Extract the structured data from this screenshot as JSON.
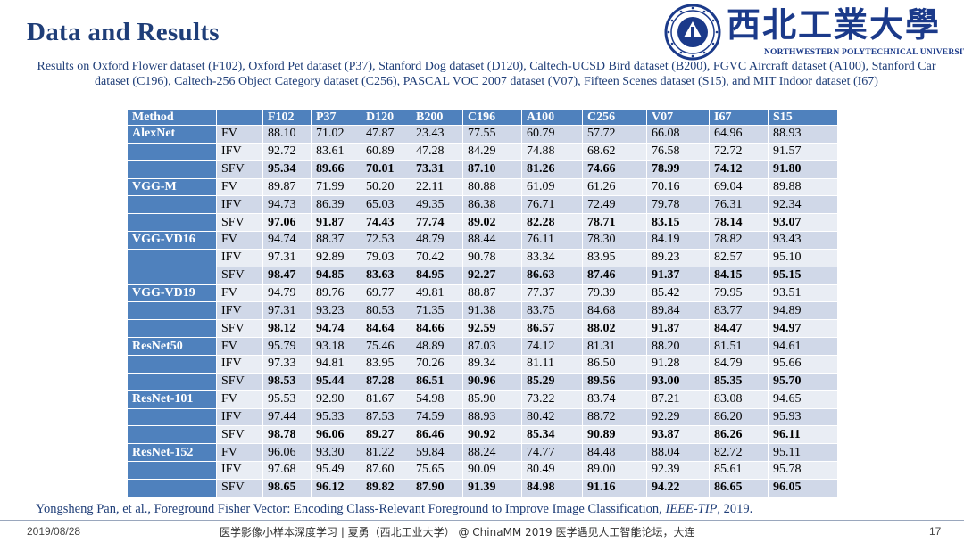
{
  "slide": {
    "title": "Data and Results"
  },
  "logo": {
    "cn_text": "西北工業大學",
    "en_text": "NORTHWESTERN POLYTECHNICAL UNIVERSITY",
    "colors": {
      "brand": "#1b3a8a"
    }
  },
  "subtitle": "Results on Oxford Flower dataset (F102), Oxford Pet dataset (P37), Stanford Dog dataset (D120), Caltech-UCSD Bird dataset (B200), FGVC Aircraft dataset (A100), Stanford Car dataset (C196), Caltech-256 Object Category dataset (C256), PASCAL VOC 2007 dataset (V07), Fifteen Scenes dataset (S15), and MIT Indoor dataset (I67)",
  "table": {
    "headers": [
      "Method",
      "",
      "F102",
      "P37",
      "D120",
      "B200",
      "C196",
      "A100",
      "C256",
      "V07",
      "I67",
      "S15"
    ],
    "groups": [
      {
        "method": "AlexNet",
        "rows": [
          {
            "type": "FV",
            "values": [
              "88.10",
              "71.02",
              "47.87",
              "23.43",
              "77.55",
              "60.79",
              "57.72",
              "66.08",
              "64.96",
              "88.93"
            ]
          },
          {
            "type": "IFV",
            "values": [
              "92.72",
              "83.61",
              "60.89",
              "47.28",
              "84.29",
              "74.88",
              "68.62",
              "76.58",
              "72.72",
              "91.57"
            ]
          },
          {
            "type": "SFV",
            "values": [
              "95.34",
              "89.66",
              "70.01",
              "73.31",
              "87.10",
              "81.26",
              "74.66",
              "78.99",
              "74.12",
              "91.80"
            ]
          }
        ]
      },
      {
        "method": "VGG-M",
        "rows": [
          {
            "type": "FV",
            "values": [
              "89.87",
              "71.99",
              "50.20",
              "22.11",
              "80.88",
              "61.09",
              "61.26",
              "70.16",
              "69.04",
              "89.88"
            ]
          },
          {
            "type": "IFV",
            "values": [
              "94.73",
              "86.39",
              "65.03",
              "49.35",
              "86.38",
              "76.71",
              "72.49",
              "79.78",
              "76.31",
              "92.34"
            ]
          },
          {
            "type": "SFV",
            "values": [
              "97.06",
              "91.87",
              "74.43",
              "77.74",
              "89.02",
              "82.28",
              "78.71",
              "83.15",
              "78.14",
              "93.07"
            ]
          }
        ]
      },
      {
        "method": "VGG-VD16",
        "rows": [
          {
            "type": "FV",
            "values": [
              "94.74",
              "88.37",
              "72.53",
              "48.79",
              "88.44",
              "76.11",
              "78.30",
              "84.19",
              "78.82",
              "93.43"
            ]
          },
          {
            "type": "IFV",
            "values": [
              "97.31",
              "92.89",
              "79.03",
              "70.42",
              "90.78",
              "83.34",
              "83.95",
              "89.23",
              "82.57",
              "95.10"
            ]
          },
          {
            "type": "SFV",
            "values": [
              "98.47",
              "94.85",
              "83.63",
              "84.95",
              "92.27",
              "86.63",
              "87.46",
              "91.37",
              "84.15",
              "95.15"
            ]
          }
        ]
      },
      {
        "method": "VGG-VD19",
        "rows": [
          {
            "type": "FV",
            "values": [
              "94.79",
              "89.76",
              "69.77",
              "49.81",
              "88.87",
              "77.37",
              "79.39",
              "85.42",
              "79.95",
              "93.51"
            ]
          },
          {
            "type": "IFV",
            "values": [
              "97.31",
              "93.23",
              "80.53",
              "71.35",
              "91.38",
              "83.75",
              "84.68",
              "89.84",
              "83.77",
              "94.89"
            ]
          },
          {
            "type": "SFV",
            "values": [
              "98.12",
              "94.74",
              "84.64",
              "84.66",
              "92.59",
              "86.57",
              "88.02",
              "91.87",
              "84.47",
              "94.97"
            ]
          }
        ]
      },
      {
        "method": "ResNet50",
        "rows": [
          {
            "type": "FV",
            "values": [
              "95.79",
              "93.18",
              "75.46",
              "48.89",
              "87.03",
              "74.12",
              "81.31",
              "88.20",
              "81.51",
              "94.61"
            ]
          },
          {
            "type": "IFV",
            "values": [
              "97.33",
              "94.81",
              "83.95",
              "70.26",
              "89.34",
              "81.11",
              "86.50",
              "91.28",
              "84.79",
              "95.66"
            ]
          },
          {
            "type": "SFV",
            "values": [
              "98.53",
              "95.44",
              "87.28",
              "86.51",
              "90.96",
              "85.29",
              "89.56",
              "93.00",
              "85.35",
              "95.70"
            ]
          }
        ]
      },
      {
        "method": "ResNet-101",
        "rows": [
          {
            "type": "FV",
            "values": [
              "95.53",
              "92.90",
              "81.67",
              "54.98",
              "85.90",
              "73.22",
              "83.74",
              "87.21",
              "83.08",
              "94.65"
            ]
          },
          {
            "type": "IFV",
            "values": [
              "97.44",
              "95.33",
              "87.53",
              "74.59",
              "88.93",
              "80.42",
              "88.72",
              "92.29",
              "86.20",
              "95.93"
            ]
          },
          {
            "type": "SFV",
            "values": [
              "98.78",
              "96.06",
              "89.27",
              "86.46",
              "90.92",
              "85.34",
              "90.89",
              "93.87",
              "86.26",
              "96.11"
            ]
          }
        ]
      },
      {
        "method": "ResNet-152",
        "rows": [
          {
            "type": "FV",
            "values": [
              "96.06",
              "93.30",
              "81.22",
              "59.84",
              "88.24",
              "74.77",
              "84.48",
              "88.04",
              "82.72",
              "95.11"
            ]
          },
          {
            "type": "IFV",
            "values": [
              "97.68",
              "95.49",
              "87.60",
              "75.65",
              "90.09",
              "80.49",
              "89.00",
              "92.39",
              "85.61",
              "95.78"
            ]
          },
          {
            "type": "SFV",
            "values": [
              "98.65",
              "96.12",
              "89.82",
              "87.90",
              "91.39",
              "84.98",
              "91.16",
              "94.22",
              "86.65",
              "96.05"
            ]
          }
        ]
      }
    ],
    "colors": {
      "header": "#4f81bd",
      "band_dark": "#d0d8e8",
      "band_light": "#e9edf4"
    }
  },
  "citation": {
    "text": "Yongsheng Pan, et al., Foreground Fisher Vector: Encoding Class-Relevant Foreground to Improve Image Classification, ",
    "journal": "IEEE-TIP",
    "suffix": ", 2019."
  },
  "footer": {
    "date": "2019/08/28",
    "center": "医学影像小样本深度学习 | 夏勇（西北工业大学） @ ChinaMM 2019 医学遇见人工智能论坛，大连",
    "page": "17"
  }
}
